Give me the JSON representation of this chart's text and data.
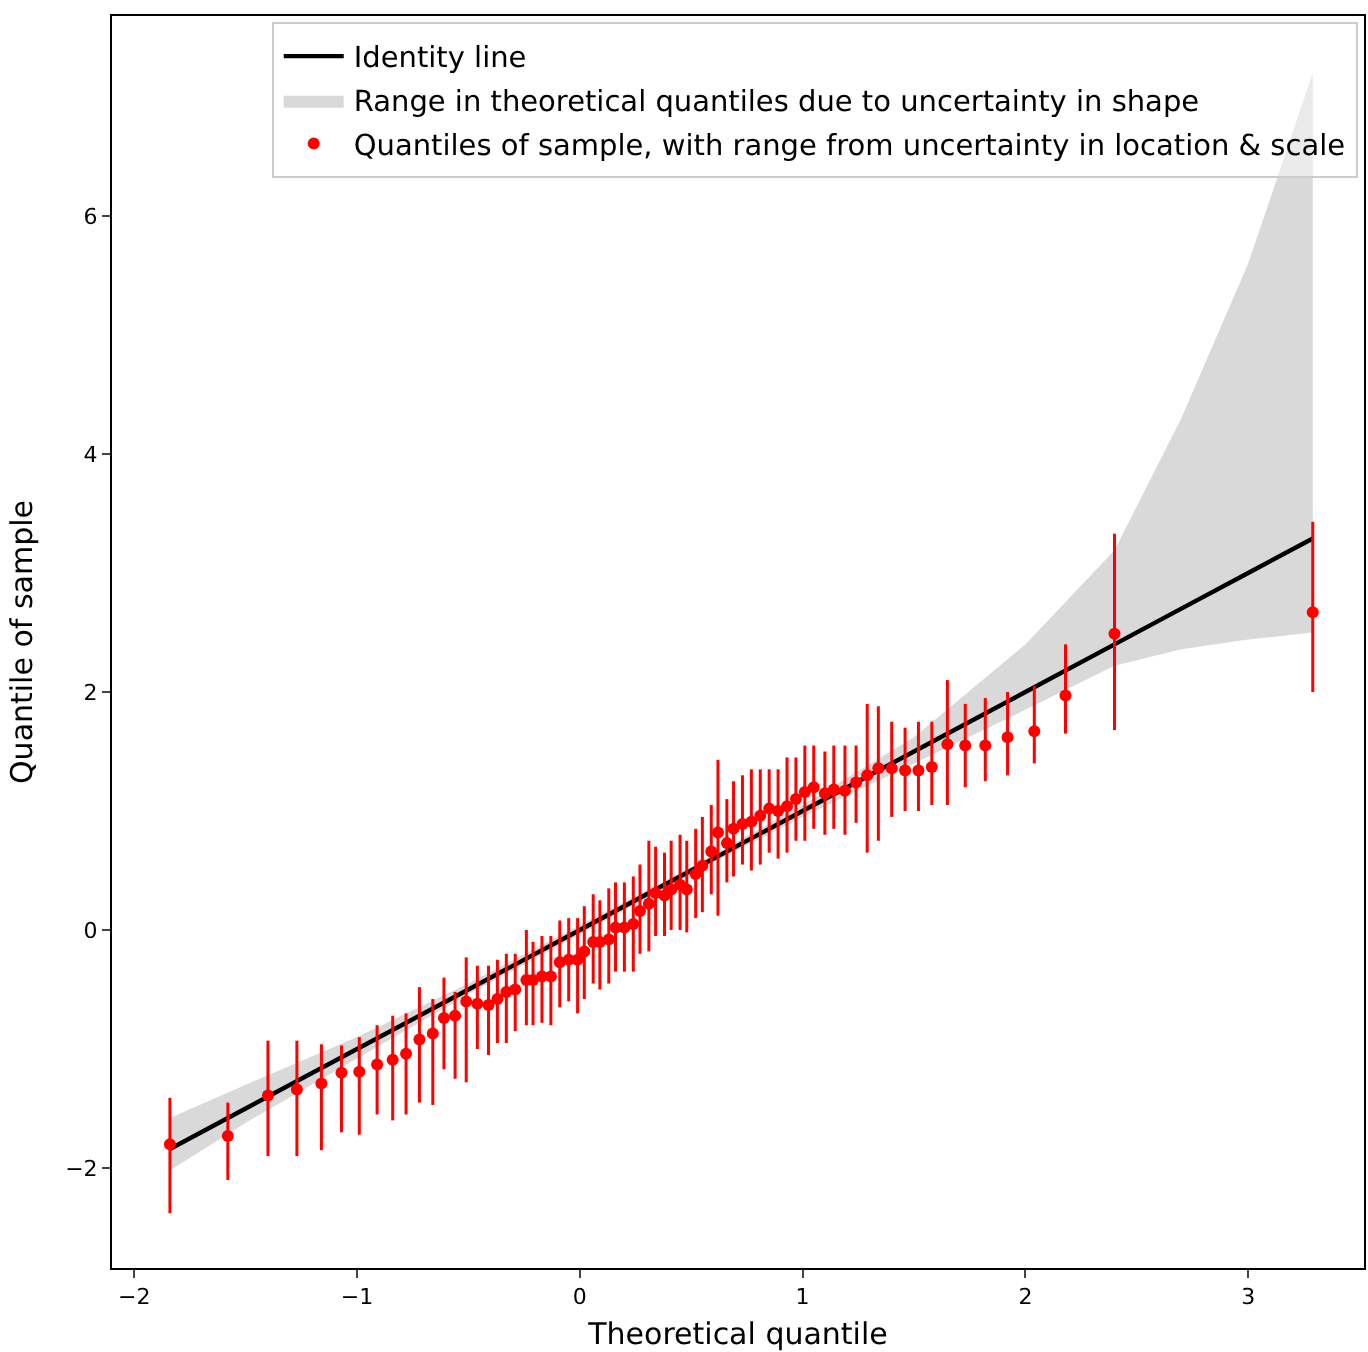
{
  "chart_data": {
    "type": "scatter",
    "xlabel": "Theoretical quantile",
    "ylabel": "Quantile of sample",
    "xlim": [
      -2.1,
      3.52
    ],
    "ylim": [
      -2.84,
      7.68
    ],
    "xticks": [
      -2,
      -1,
      0,
      1,
      2,
      3
    ],
    "yticks": [
      -2,
      0,
      2,
      4,
      6
    ],
    "grid": false,
    "legend": "top right",
    "series": [
      {
        "name": "Identity line",
        "type": "line",
        "color": "#000000",
        "line_style": "solid",
        "x": [
          -1.84,
          -1.5,
          -1,
          -0.5,
          0,
          0.5,
          1,
          1.5,
          2,
          2.4,
          2.7,
          3.0,
          3.29
        ],
        "values": [
          -1.84,
          -1.5,
          -1,
          -0.5,
          0,
          0.5,
          1,
          1.5,
          2,
          2.4,
          2.7,
          3.0,
          3.29
        ],
        "lower": [
          -2.02,
          -1.62,
          -1.08,
          -0.54,
          -0.04,
          0.47,
          0.95,
          1.4,
          1.85,
          2.22,
          2.36,
          2.44,
          2.5
        ],
        "upper": [
          -1.58,
          -1.3,
          -0.9,
          -0.45,
          0.04,
          0.53,
          1.05,
          1.62,
          2.4,
          3.19,
          4.3,
          5.6,
          7.2
        ]
      },
      {
        "name": "Range in theoretical quantiles due to uncertainty in shape",
        "type": "area",
        "color": "#d9d9d9"
      },
      {
        "name": "Quantiles of sample, with range from uncertainty in location & scale",
        "color": "#ff0000",
        "marker": "circle",
        "x": [
          -1.84,
          -1.58,
          -1.4,
          -1.27,
          -1.16,
          -1.07,
          -0.99,
          -0.91,
          -0.84,
          -0.78,
          -0.72,
          -0.66,
          -0.61,
          -0.56,
          -0.51,
          -0.46,
          -0.41,
          -0.37,
          -0.33,
          -0.29,
          -0.24,
          -0.21,
          -0.17,
          -0.13,
          -0.09,
          -0.05,
          -0.01,
          0.02,
          0.06,
          0.09,
          0.13,
          0.16,
          0.2,
          0.24,
          0.27,
          0.31,
          0.34,
          0.38,
          0.41,
          0.45,
          0.48,
          0.52,
          0.55,
          0.59,
          0.62,
          0.66,
          0.69,
          0.73,
          0.77,
          0.81,
          0.85,
          0.89,
          0.93,
          0.97,
          1.01,
          1.05,
          1.1,
          1.14,
          1.19,
          1.24,
          1.29,
          1.34,
          1.4,
          1.46,
          1.52,
          1.58,
          1.65,
          1.73,
          1.82,
          1.92,
          2.04,
          2.18,
          2.4,
          3.29
        ],
        "values": [
          -1.8,
          -1.73,
          -1.39,
          -1.34,
          -1.29,
          -1.2,
          -1.19,
          -1.13,
          -1.09,
          -1.04,
          -0.92,
          -0.87,
          -0.74,
          -0.72,
          -0.6,
          -0.62,
          -0.63,
          -0.58,
          -0.52,
          -0.5,
          -0.42,
          -0.42,
          -0.39,
          -0.39,
          -0.27,
          -0.25,
          -0.25,
          -0.18,
          -0.1,
          -0.1,
          -0.08,
          0.02,
          0.02,
          0.05,
          0.16,
          0.22,
          0.31,
          0.29,
          0.34,
          0.38,
          0.34,
          0.47,
          0.54,
          0.66,
          0.82,
          0.73,
          0.85,
          0.89,
          0.91,
          0.96,
          1.02,
          1,
          1.04,
          1.1,
          1.16,
          1.2,
          1.15,
          1.18,
          1.17,
          1.24,
          1.3,
          1.36,
          1.36,
          1.34,
          1.34,
          1.37,
          1.56,
          1.55,
          1.55,
          1.62,
          1.67,
          1.97,
          2.49,
          2.67
        ],
        "errors": [
          [
            -2.38,
            -1.41
          ],
          [
            -2.1,
            -1.45
          ],
          [
            -1.9,
            -0.93
          ],
          [
            -1.9,
            -0.93
          ],
          [
            -1.85,
            -0.96
          ],
          [
            -1.7,
            -0.97
          ],
          [
            -1.72,
            -0.9
          ],
          [
            -1.55,
            -0.8
          ],
          [
            -1.6,
            -0.72
          ],
          [
            -1.55,
            -0.7
          ],
          [
            -1.45,
            -0.48
          ],
          [
            -1.47,
            -0.58
          ],
          [
            -1.17,
            -0.4
          ],
          [
            -1.25,
            -0.52
          ],
          [
            -1.28,
            -0.23
          ],
          [
            -1.0,
            -0.3
          ],
          [
            -1.05,
            -0.3
          ],
          [
            -0.95,
            -0.25
          ],
          [
            -0.95,
            -0.2
          ],
          [
            -0.85,
            -0.2
          ],
          [
            -0.8,
            0.0
          ],
          [
            -0.8,
            -0.1
          ],
          [
            -0.78,
            -0.05
          ],
          [
            -0.8,
            -0.05
          ],
          [
            -0.65,
            0.08
          ],
          [
            -0.6,
            0.1
          ],
          [
            -0.7,
            0.1
          ],
          [
            -0.58,
            0.2
          ],
          [
            -0.45,
            0.3
          ],
          [
            -0.5,
            0.25
          ],
          [
            -0.45,
            0.35
          ],
          [
            -0.35,
            0.4
          ],
          [
            -0.35,
            0.4
          ],
          [
            -0.35,
            0.45
          ],
          [
            -0.2,
            0.55
          ],
          [
            -0.18,
            0.75
          ],
          [
            -0.05,
            0.7
          ],
          [
            -0.05,
            0.65
          ],
          [
            0.0,
            0.75
          ],
          [
            0.0,
            0.8
          ],
          [
            -0.02,
            0.75
          ],
          [
            0.1,
            0.85
          ],
          [
            0.15,
            0.95
          ],
          [
            0.3,
            1.05
          ],
          [
            0.12,
            1.43
          ],
          [
            0.4,
            1.1
          ],
          [
            0.45,
            1.25
          ],
          [
            0.55,
            1.3
          ],
          [
            0.5,
            1.35
          ],
          [
            0.55,
            1.35
          ],
          [
            0.65,
            1.35
          ],
          [
            0.6,
            1.35
          ],
          [
            0.65,
            1.45
          ],
          [
            0.75,
            1.45
          ],
          [
            0.75,
            1.55
          ],
          [
            0.85,
            1.55
          ],
          [
            0.8,
            1.5
          ],
          [
            0.85,
            1.55
          ],
          [
            0.8,
            1.55
          ],
          [
            0.9,
            1.55
          ],
          [
            0.65,
            1.9
          ],
          [
            0.75,
            1.88
          ],
          [
            0.95,
            1.75
          ],
          [
            1.0,
            1.7
          ],
          [
            1.0,
            1.75
          ],
          [
            1.05,
            1.75
          ],
          [
            1.05,
            2.1
          ],
          [
            1.2,
            1.9
          ],
          [
            1.25,
            1.95
          ],
          [
            1.3,
            2.0
          ],
          [
            1.4,
            2.05
          ],
          [
            1.65,
            2.4
          ],
          [
            1.68,
            3.33
          ],
          [
            2.0,
            3.43
          ]
        ]
      }
    ]
  }
}
